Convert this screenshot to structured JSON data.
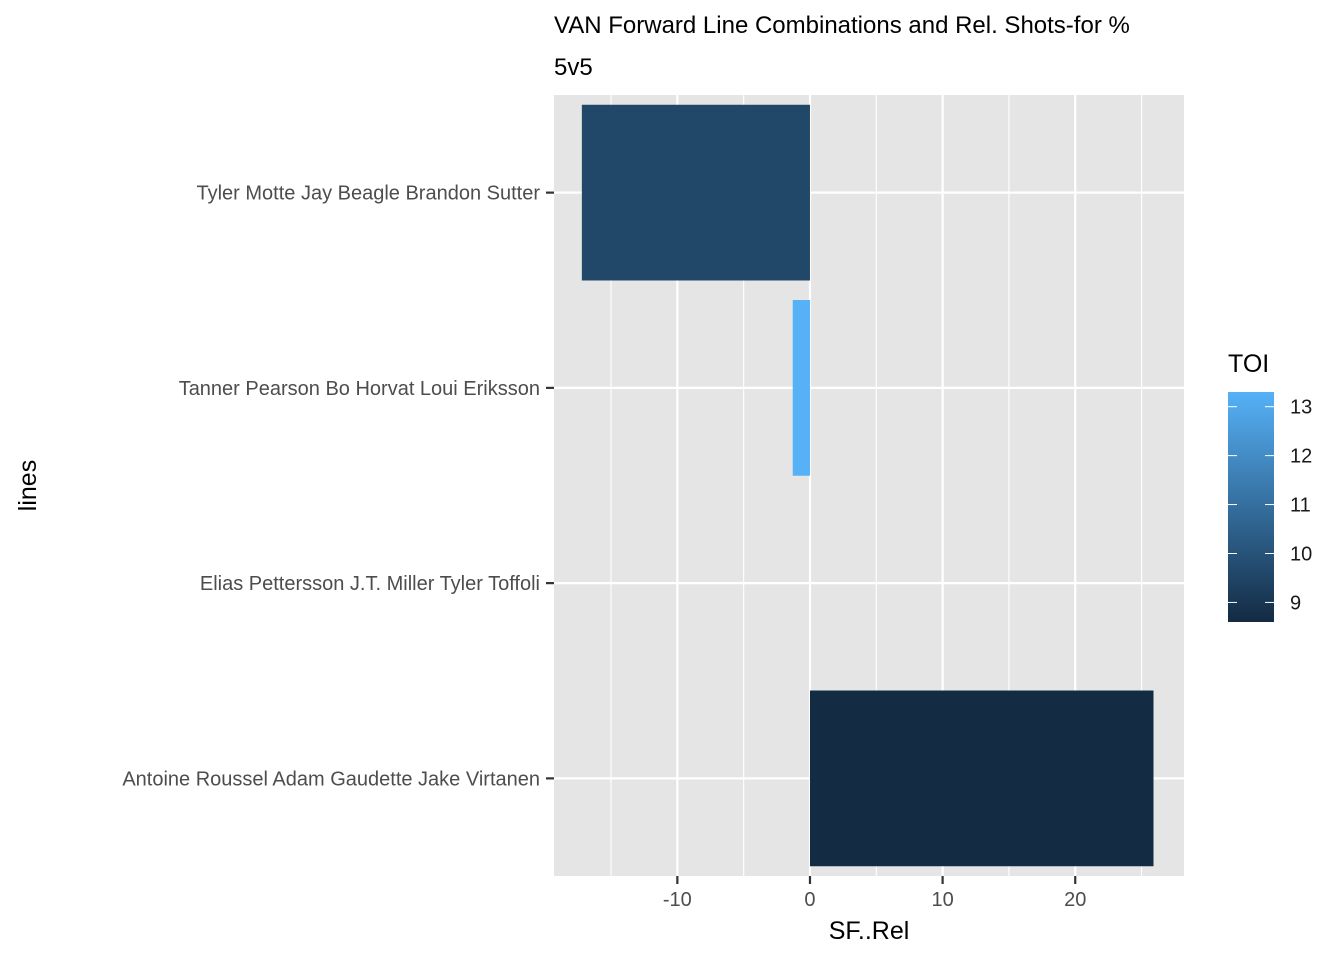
{
  "chart_data": {
    "type": "bar",
    "orientation": "horizontal",
    "title": "VAN Forward Line Combinations and Rel. Shots-for %",
    "subtitle": "5v5",
    "xlabel": "SF..Rel",
    "ylabel": "lines",
    "xlim": [
      -19.3,
      28.2
    ],
    "x_ticks": [
      -10,
      0,
      10,
      20
    ],
    "x_tick_labels": [
      "-10",
      "0",
      "10",
      "20"
    ],
    "categories": [
      "Tyler Motte Jay Beagle Brandon Sutter",
      "Tanner Pearson Bo Horvat Loui Eriksson",
      "Elias Pettersson J.T. Miller Tyler Toffoli",
      "Antoine Roussel Adam Gaudette Jake Virtanen"
    ],
    "values": [
      -17.2,
      -1.3,
      0,
      25.9
    ],
    "fill_values": [
      9.6,
      13.3,
      null,
      8.6
    ],
    "fill": {
      "name": "TOI",
      "min": 8.6,
      "max": 13.3,
      "low_color": "#132B43",
      "high_color": "#56B1F7",
      "breaks": [
        9,
        10,
        11,
        12,
        13
      ],
      "break_labels": [
        "9",
        "10",
        "11",
        "12",
        "13"
      ]
    },
    "grid": true,
    "panel_background": "#e5e5e5",
    "grid_color": "#ffffff",
    "legend_position": "right"
  }
}
